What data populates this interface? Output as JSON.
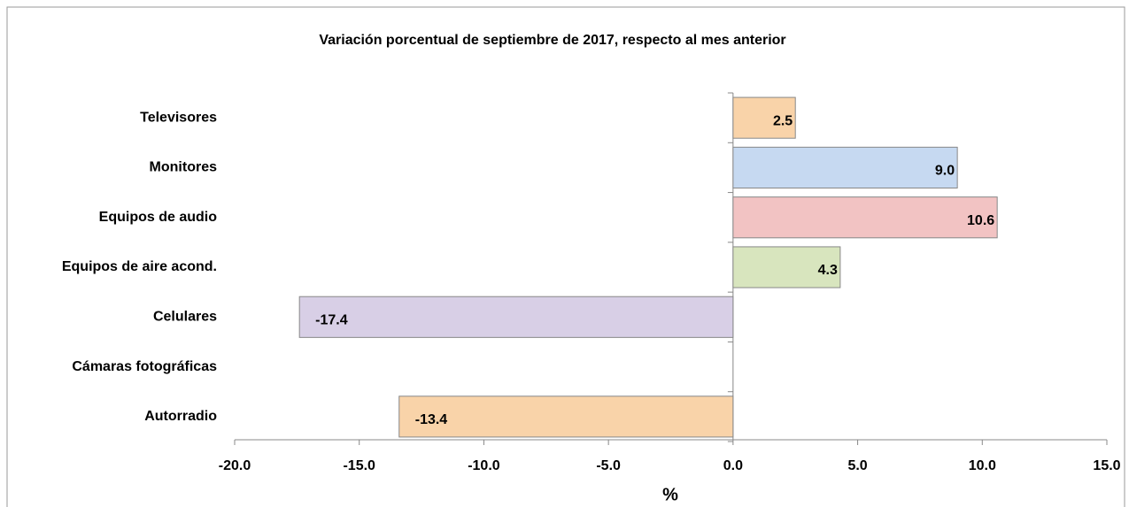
{
  "chart_data": {
    "type": "barh",
    "title": "Variación porcentual de septiembre de 2017, respecto al mes anterior",
    "xlabel": "%",
    "categories": [
      "Televisores",
      "Monitores",
      "Equipos de audio",
      "Equipos de aire acond.",
      "Celulares",
      "Cámaras fotográficas",
      "Autorradio"
    ],
    "values": [
      2.5,
      9.0,
      10.6,
      4.3,
      -17.4,
      null,
      -13.4
    ],
    "value_labels": [
      "2.5",
      "9.0",
      "10.6",
      "4.3",
      "-17.4",
      null,
      "-13.4"
    ],
    "colors": [
      "#f9d3a9",
      "#c6d9f1",
      "#f2c3c3",
      "#d8e5be",
      "#d8cfe6",
      "#f9d3a9",
      "#f9d3a9"
    ],
    "xlim": [
      -20,
      15
    ],
    "xticks": [
      {
        "value": -20,
        "label": "-20.0"
      },
      {
        "value": -15,
        "label": "-15.0"
      },
      {
        "value": -10,
        "label": "-10.0"
      },
      {
        "value": -5,
        "label": "-5.0"
      },
      {
        "value": 0,
        "label": "0.0"
      },
      {
        "value": 5,
        "label": "5.0"
      },
      {
        "value": 10,
        "label": "10.0"
      },
      {
        "value": 15,
        "label": "15.0"
      }
    ],
    "grid": false
  }
}
